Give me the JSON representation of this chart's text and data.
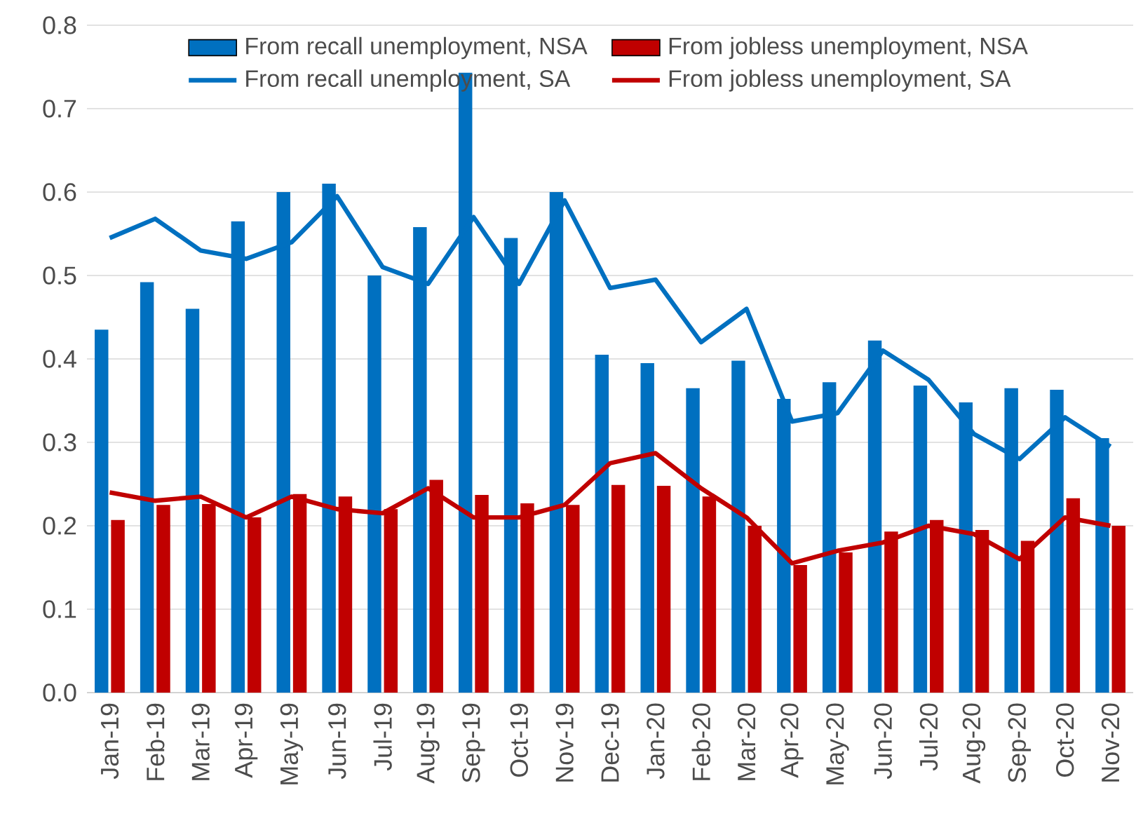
{
  "chart_data": {
    "type": "bar",
    "categories": [
      "Jan-19",
      "Feb-19",
      "Mar-19",
      "Apr-19",
      "May-19",
      "Jun-19",
      "Jul-19",
      "Aug-19",
      "Sep-19",
      "Oct-19",
      "Nov-19",
      "Dec-19",
      "Jan-20",
      "Feb-20",
      "Mar-20",
      "Apr-20",
      "May-20",
      "Jun-20",
      "Jul-20",
      "Aug-20",
      "Sep-20",
      "Oct-20",
      "Nov-20"
    ],
    "series": [
      {
        "name": "From recall unemployment, NSA",
        "color": "#0070c0",
        "values": [
          0.435,
          0.492,
          0.46,
          0.565,
          0.6,
          0.61,
          0.5,
          0.558,
          0.743,
          0.545,
          0.6,
          0.405,
          0.395,
          0.365,
          0.398,
          0.352,
          0.372,
          0.422,
          0.368,
          0.348,
          0.365,
          0.363,
          0.305
        ]
      },
      {
        "name": "From jobless unemployment, NSA",
        "color": "#c00000",
        "values": [
          0.207,
          0.225,
          0.226,
          0.21,
          0.238,
          0.235,
          0.22,
          0.255,
          0.237,
          0.227,
          0.225,
          0.249,
          0.248,
          0.235,
          0.2,
          0.153,
          0.168,
          0.193,
          0.207,
          0.195,
          0.182,
          0.233,
          0.2
        ]
      },
      {
        "name": "From recall unemployment, SA",
        "type": "line",
        "color": "#0070c0",
        "values": [
          0.545,
          0.568,
          0.53,
          0.52,
          0.54,
          0.595,
          0.51,
          0.49,
          0.57,
          0.49,
          0.59,
          0.485,
          0.495,
          0.42,
          0.46,
          0.325,
          0.335,
          0.41,
          0.375,
          0.31,
          0.28,
          0.33,
          0.295
        ]
      },
      {
        "name": "From jobless unemployment, SA",
        "type": "line",
        "color": "#c00000",
        "values": [
          0.24,
          0.23,
          0.235,
          0.21,
          0.235,
          0.22,
          0.215,
          0.245,
          0.21,
          0.21,
          0.225,
          0.275,
          0.287,
          0.245,
          0.21,
          0.155,
          0.17,
          0.18,
          0.2,
          0.19,
          0.16,
          0.21,
          0.2
        ]
      }
    ],
    "ylim": [
      0,
      0.8
    ],
    "yticks": [
      {
        "value": 0,
        "label": "0.0"
      },
      {
        "value": 0.1,
        "label": "0.1"
      },
      {
        "value": 0.2,
        "label": "0.2"
      },
      {
        "value": 0.3,
        "label": "0.3"
      },
      {
        "value": 0.4,
        "label": "0.4"
      },
      {
        "value": 0.5,
        "label": "0.5"
      },
      {
        "value": 0.6,
        "label": "0.6"
      },
      {
        "value": 0.7,
        "label": "0.7"
      },
      {
        "value": 0.8,
        "label": "0.8"
      }
    ],
    "grid": "y",
    "legend": "top"
  }
}
